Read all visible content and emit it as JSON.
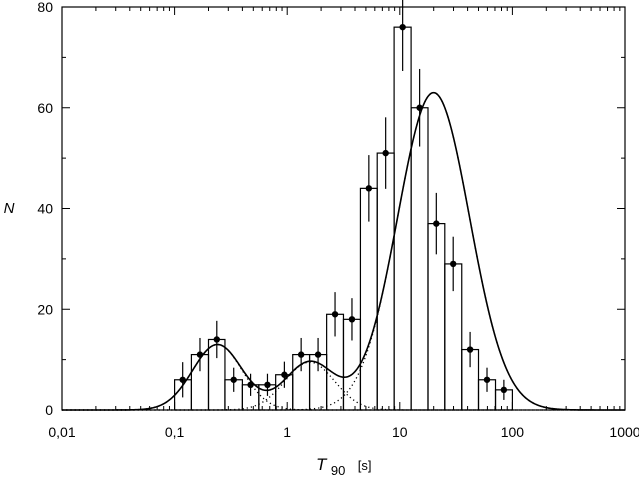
{
  "chart_data": {
    "type": "line",
    "xlabel": "T90",
    "xlabel_main": "T",
    "xlabel_sub": "90",
    "xlabel_unit": "[s]",
    "ylabel": "N",
    "xscale": "log",
    "xlim": [
      0.01,
      1000
    ],
    "ylim": [
      0,
      80
    ],
    "x_ticks": [
      0.01,
      0.1,
      1,
      10,
      100,
      1000
    ],
    "x_tick_labels": [
      "0,01",
      "0,1",
      "1",
      "10",
      "100",
      "1000"
    ],
    "y_ticks": [
      0,
      20,
      40,
      60,
      80
    ],
    "y_tick_labels": [
      "0",
      "20",
      "40",
      "60",
      "80"
    ],
    "grid": false,
    "series": [
      {
        "kind": "histogram",
        "bin_edges": [
          0.1,
          0.141,
          0.2,
          0.28,
          0.4,
          0.56,
          0.79,
          1.12,
          1.58,
          2.24,
          3.16,
          4.47,
          6.3,
          8.9,
          12.6,
          17.8,
          25.1,
          35.5,
          50,
          70.8,
          100,
          141,
          200,
          282
        ],
        "counts": [
          6,
          11,
          14,
          6,
          5,
          5,
          7,
          11,
          11,
          19,
          18,
          44,
          51,
          76,
          60,
          37,
          29,
          12,
          6,
          4,
          0,
          0,
          0
        ]
      },
      {
        "kind": "points_with_errorbars",
        "x": [
          0.118,
          0.168,
          0.237,
          0.335,
          0.473,
          0.668,
          0.944,
          1.33,
          1.88,
          2.66,
          3.76,
          5.31,
          7.49,
          10.6,
          15,
          21.1,
          29.8,
          42.1,
          59.5,
          84,
          118,
          168,
          237
        ],
        "y": [
          6,
          11,
          14,
          6,
          5,
          5,
          7,
          11,
          11,
          19,
          18,
          44,
          51,
          76,
          60,
          37,
          29,
          12,
          6,
          4,
          0,
          0,
          0
        ],
        "yerr": [
          3.5,
          3.3,
          3.7,
          2.4,
          2.2,
          2.2,
          2.6,
          3.3,
          3.3,
          4.4,
          4.2,
          6.6,
          7.1,
          8.7,
          7.7,
          6.1,
          5.4,
          3.5,
          2.4,
          2,
          0,
          0,
          0
        ]
      },
      {
        "kind": "total_fit",
        "components": [
          {
            "A": 13,
            "mu_log10": -0.62,
            "sigma_log10": 0.22
          },
          {
            "A": 9.5,
            "mu_log10": 0.2,
            "sigma_log10": 0.22
          },
          {
            "A": 63,
            "mu_log10": 1.3,
            "sigma_log10": 0.32
          }
        ]
      }
    ]
  }
}
